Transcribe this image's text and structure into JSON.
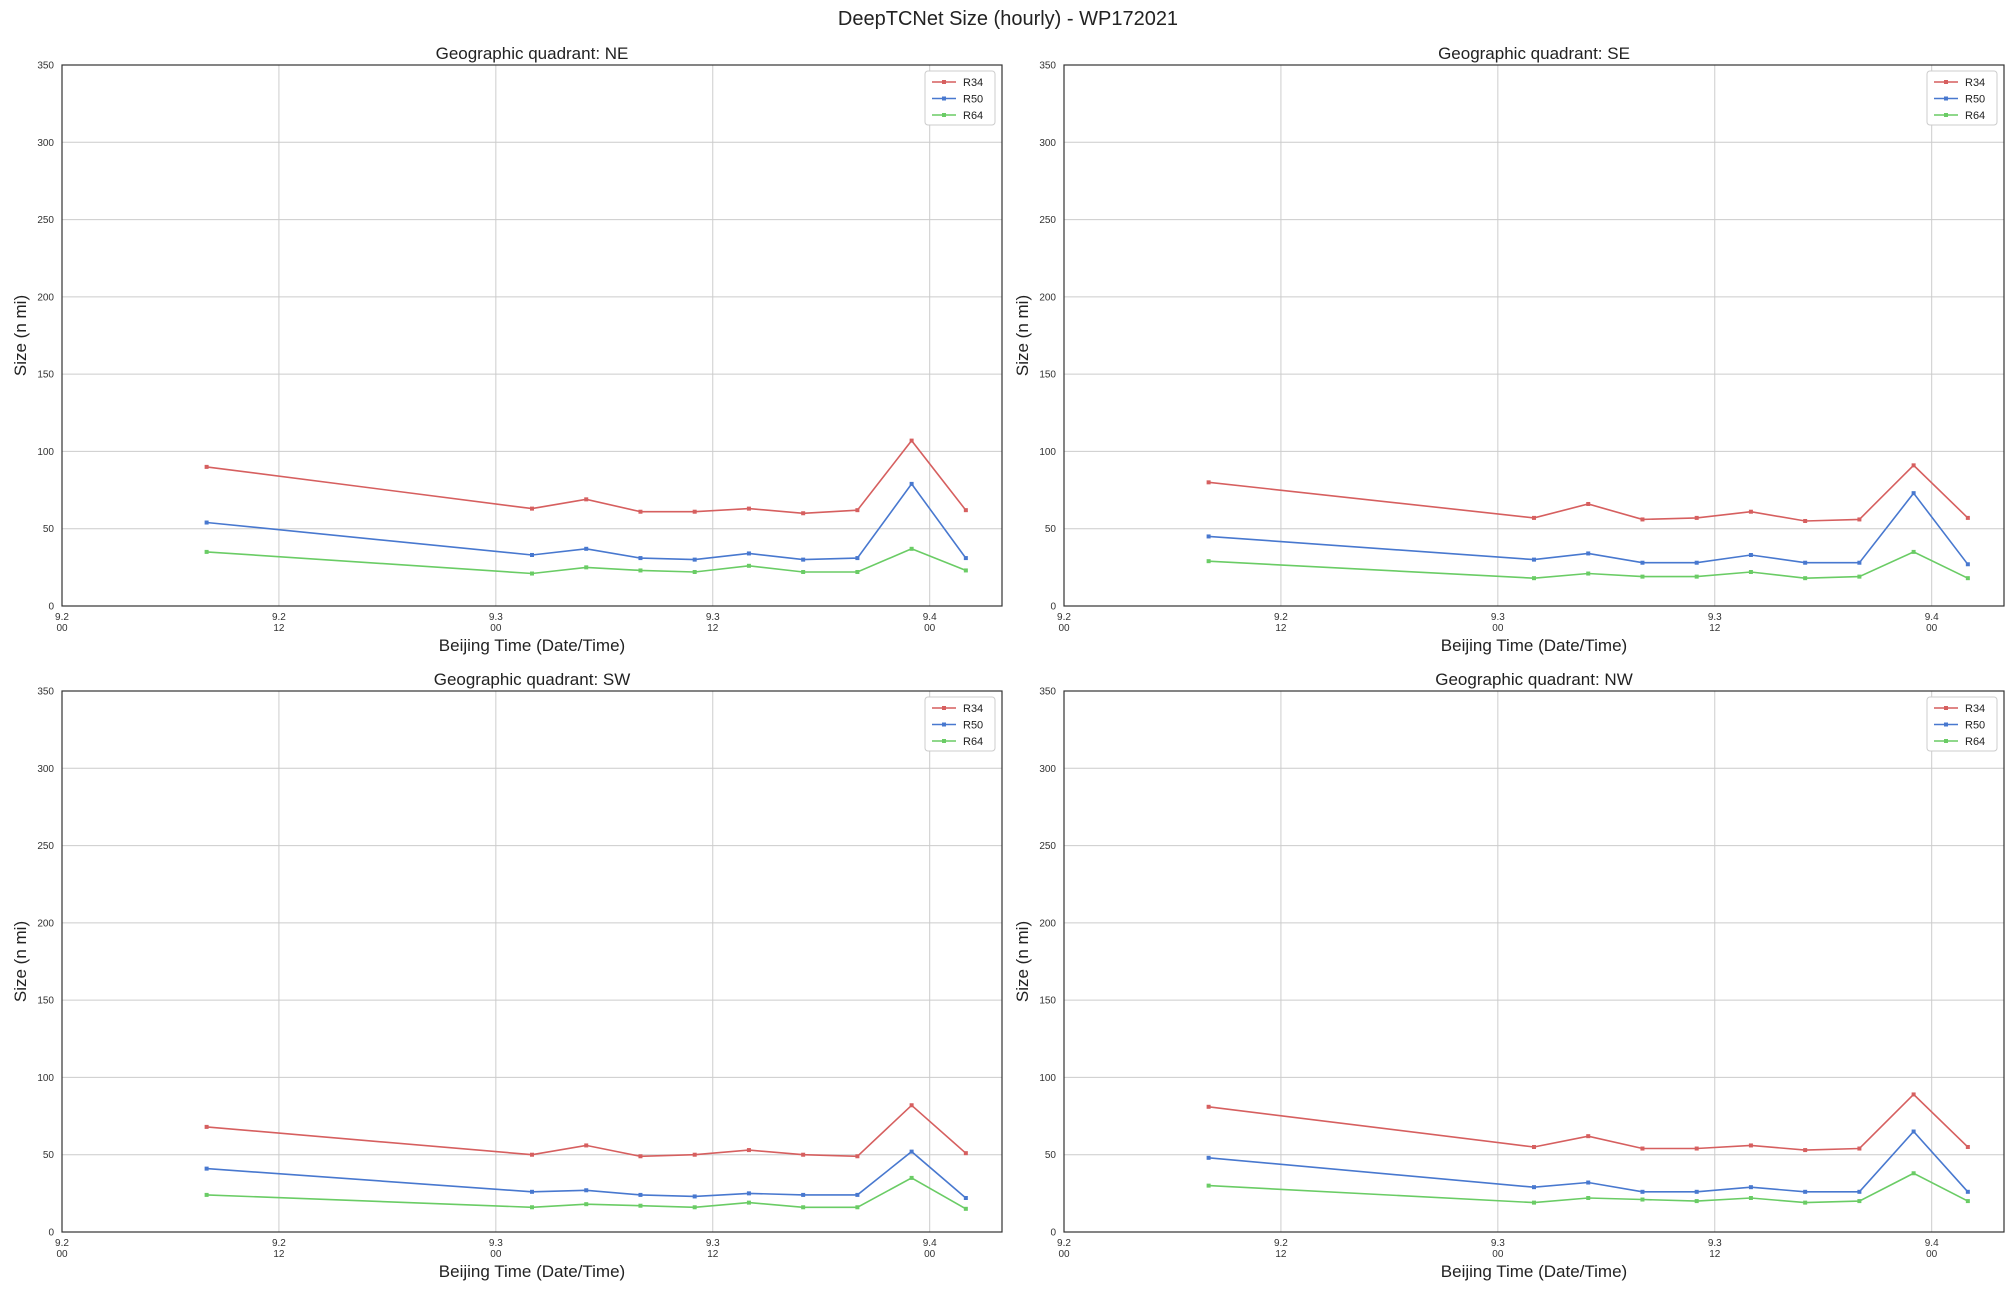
{
  "suptitle": "DeepTCNet Size (hourly) - WP172021",
  "chart_data": [
    {
      "type": "line",
      "title": "Geographic quadrant: NE",
      "xlabel": "Beijing Time (Date/Time)",
      "ylabel": "Size (n mi)",
      "ylim": [
        0,
        350
      ],
      "yticks": [
        0,
        50,
        100,
        150,
        200,
        250,
        300,
        350
      ],
      "xlim_hours": [
        0,
        52
      ],
      "xticks": [
        {
          "hour": 0,
          "top": "9.2",
          "bottom": "00"
        },
        {
          "hour": 12,
          "top": "9.2",
          "bottom": "12"
        },
        {
          "hour": 24,
          "top": "9.3",
          "bottom": "00"
        },
        {
          "hour": 36,
          "top": "9.3",
          "bottom": "12"
        },
        {
          "hour": 48,
          "top": "9.4",
          "bottom": "00"
        }
      ],
      "x_hours": [
        8,
        26,
        29,
        32,
        35,
        38,
        41,
        44,
        47,
        50
      ],
      "series": [
        {
          "name": "R34",
          "color": "#d65f5f",
          "values": [
            90,
            63,
            69,
            61,
            61,
            63,
            60,
            62,
            107,
            62
          ]
        },
        {
          "name": "R50",
          "color": "#4878cf",
          "values": [
            54,
            33,
            37,
            31,
            30,
            34,
            30,
            31,
            79,
            31
          ]
        },
        {
          "name": "R64",
          "color": "#6acc65",
          "values": [
            35,
            21,
            25,
            23,
            22,
            26,
            22,
            22,
            37,
            23
          ]
        }
      ],
      "legend": "top-right",
      "grid": true
    },
    {
      "type": "line",
      "title": "Geographic quadrant: SE",
      "xlabel": "Beijing Time (Date/Time)",
      "ylabel": "Size (n mi)",
      "ylim": [
        0,
        350
      ],
      "yticks": [
        0,
        50,
        100,
        150,
        200,
        250,
        300,
        350
      ],
      "xlim_hours": [
        0,
        52
      ],
      "xticks": [
        {
          "hour": 0,
          "top": "9.2",
          "bottom": "00"
        },
        {
          "hour": 12,
          "top": "9.2",
          "bottom": "12"
        },
        {
          "hour": 24,
          "top": "9.3",
          "bottom": "00"
        },
        {
          "hour": 36,
          "top": "9.3",
          "bottom": "12"
        },
        {
          "hour": 48,
          "top": "9.4",
          "bottom": "00"
        }
      ],
      "x_hours": [
        8,
        26,
        29,
        32,
        35,
        38,
        41,
        44,
        47,
        50
      ],
      "series": [
        {
          "name": "R34",
          "color": "#d65f5f",
          "values": [
            80,
            57,
            66,
            56,
            57,
            61,
            55,
            56,
            91,
            57
          ]
        },
        {
          "name": "R50",
          "color": "#4878cf",
          "values": [
            45,
            30,
            34,
            28,
            28,
            33,
            28,
            28,
            73,
            27
          ]
        },
        {
          "name": "R64",
          "color": "#6acc65",
          "values": [
            29,
            18,
            21,
            19,
            19,
            22,
            18,
            19,
            35,
            18
          ]
        }
      ],
      "legend": "top-right",
      "grid": true
    },
    {
      "type": "line",
      "title": "Geographic quadrant: SW",
      "xlabel": "Beijing Time (Date/Time)",
      "ylabel": "Size (n mi)",
      "ylim": [
        0,
        350
      ],
      "yticks": [
        0,
        50,
        100,
        150,
        200,
        250,
        300,
        350
      ],
      "xlim_hours": [
        0,
        52
      ],
      "xticks": [
        {
          "hour": 0,
          "top": "9.2",
          "bottom": "00"
        },
        {
          "hour": 12,
          "top": "9.2",
          "bottom": "12"
        },
        {
          "hour": 24,
          "top": "9.3",
          "bottom": "00"
        },
        {
          "hour": 36,
          "top": "9.3",
          "bottom": "12"
        },
        {
          "hour": 48,
          "top": "9.4",
          "bottom": "00"
        }
      ],
      "x_hours": [
        8,
        26,
        29,
        32,
        35,
        38,
        41,
        44,
        47,
        50
      ],
      "series": [
        {
          "name": "R34",
          "color": "#d65f5f",
          "values": [
            68,
            50,
            56,
            49,
            50,
            53,
            50,
            49,
            82,
            51
          ]
        },
        {
          "name": "R50",
          "color": "#4878cf",
          "values": [
            41,
            26,
            27,
            24,
            23,
            25,
            24,
            24,
            52,
            22
          ]
        },
        {
          "name": "R64",
          "color": "#6acc65",
          "values": [
            24,
            16,
            18,
            17,
            16,
            19,
            16,
            16,
            35,
            15
          ]
        }
      ],
      "legend": "top-right",
      "grid": true
    },
    {
      "type": "line",
      "title": "Geographic quadrant: NW",
      "xlabel": "Beijing Time (Date/Time)",
      "ylabel": "Size (n mi)",
      "ylim": [
        0,
        350
      ],
      "yticks": [
        0,
        50,
        100,
        150,
        200,
        250,
        300,
        350
      ],
      "xlim_hours": [
        0,
        52
      ],
      "xticks": [
        {
          "hour": 0,
          "top": "9.2",
          "bottom": "00"
        },
        {
          "hour": 12,
          "top": "9.2",
          "bottom": "12"
        },
        {
          "hour": 24,
          "top": "9.3",
          "bottom": "00"
        },
        {
          "hour": 36,
          "top": "9.3",
          "bottom": "12"
        },
        {
          "hour": 48,
          "top": "9.4",
          "bottom": "00"
        }
      ],
      "x_hours": [
        8,
        26,
        29,
        32,
        35,
        38,
        41,
        44,
        47,
        50
      ],
      "series": [
        {
          "name": "R34",
          "color": "#d65f5f",
          "values": [
            81,
            55,
            62,
            54,
            54,
            56,
            53,
            54,
            89,
            55
          ]
        },
        {
          "name": "R50",
          "color": "#4878cf",
          "values": [
            48,
            29,
            32,
            26,
            26,
            29,
            26,
            26,
            65,
            26
          ]
        },
        {
          "name": "R64",
          "color": "#6acc65",
          "values": [
            30,
            19,
            22,
            21,
            20,
            22,
            19,
            20,
            38,
            20
          ]
        }
      ],
      "legend": "top-right",
      "grid": true
    }
  ]
}
